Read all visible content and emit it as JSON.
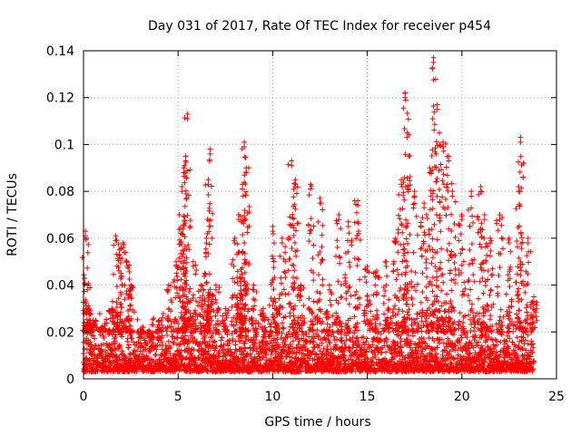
{
  "chart_data": {
    "type": "scatter",
    "title": "Day 031 of 2017, Rate Of TEC Index for receiver p454",
    "xlabel": "GPS time / hours",
    "ylabel": "ROTI / TECUs",
    "xlim": [
      0,
      25
    ],
    "ylim": [
      0,
      0.14
    ],
    "x_ticks": [
      0,
      5,
      10,
      15,
      20,
      25
    ],
    "y_ticks": [
      0,
      0.02,
      0.04,
      0.06,
      0.08,
      0.1,
      0.12,
      0.14
    ],
    "x_tick_labels": [
      "0",
      "5",
      "10",
      "15",
      "20",
      "25"
    ],
    "y_tick_labels": [
      "0",
      "0.02",
      "0.04",
      "0.06",
      "0.08",
      "0.1",
      "0.12",
      "0.14"
    ],
    "grid": true,
    "marker": "plus",
    "color": "#ff0000",
    "series": [
      {
        "name": "ROTI",
        "x": [
          0.1,
          0.2,
          0.3,
          0.5,
          1.0,
          1.5,
          1.7,
          1.9,
          2.1,
          2.3,
          2.5,
          3.0,
          3.5,
          4.0,
          4.5,
          4.9,
          5.2,
          5.3,
          5.4,
          5.5,
          5.8,
          6.2,
          6.5,
          6.6,
          6.7,
          7.0,
          7.5,
          8.0,
          8.2,
          8.4,
          8.5,
          8.6,
          9.0,
          9.5,
          10.0,
          10.2,
          10.5,
          11.0,
          11.2,
          11.5,
          12.0,
          12.5,
          13.0,
          13.5,
          14.0,
          14.5,
          15.0,
          15.5,
          16.0,
          16.5,
          16.8,
          17.0,
          17.1,
          17.5,
          18.0,
          18.3,
          18.5,
          18.7,
          19.0,
          19.3,
          19.5,
          20.0,
          20.5,
          21.0,
          21.2,
          21.5,
          22.0,
          22.5,
          23.0,
          23.1,
          23.5,
          23.8
        ],
        "y": [
          0.063,
          0.04,
          0.03,
          0.025,
          0.022,
          0.03,
          0.061,
          0.055,
          0.058,
          0.05,
          0.04,
          0.02,
          0.018,
          0.025,
          0.04,
          0.05,
          0.082,
          0.09,
          0.095,
          0.113,
          0.05,
          0.04,
          0.06,
          0.085,
          0.098,
          0.04,
          0.03,
          0.06,
          0.07,
          0.083,
          0.101,
          0.09,
          0.04,
          0.03,
          0.065,
          0.03,
          0.06,
          0.093,
          0.085,
          0.04,
          0.083,
          0.077,
          0.04,
          0.07,
          0.067,
          0.076,
          0.048,
          0.046,
          0.05,
          0.06,
          0.085,
          0.122,
          0.105,
          0.08,
          0.075,
          0.09,
          0.137,
          0.117,
          0.101,
          0.095,
          0.08,
          0.07,
          0.08,
          0.082,
          0.07,
          0.06,
          0.07,
          0.06,
          0.082,
          0.103,
          0.06,
          0.035
        ]
      }
    ],
    "baseline_min": 0.003,
    "baseline_max": 0.02,
    "x_start": 0,
    "x_end": 23.8
  }
}
